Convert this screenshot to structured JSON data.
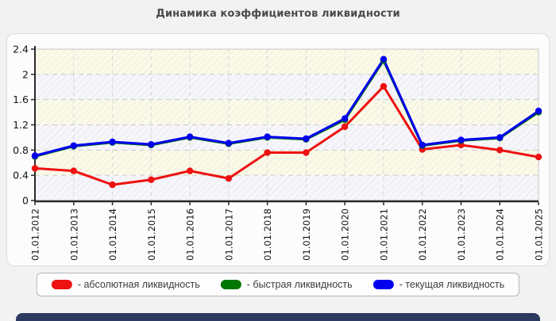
{
  "page": {
    "title": "Динамика коэффициентов ликвидности",
    "background": "#f2f2f2",
    "bottom_bar_color": "#2d3a5f"
  },
  "legend": {
    "items": [
      {
        "label": "- абсолютная ликвидность",
        "color": "#ee1111"
      },
      {
        "label": "- быстрая ликвидность",
        "color": "#007700"
      },
      {
        "label": "- текущая ликвидность",
        "color": "#0000ee"
      }
    ]
  },
  "chart_data": {
    "type": "line",
    "title": "Динамика коэффициентов ликвидности",
    "x_labels": [
      "01.01.2012",
      "01.01.2013",
      "01.01.2014",
      "01.01.2015",
      "01.01.2016",
      "01.01.2017",
      "01.01.2018",
      "01.01.2019",
      "01.01.2020",
      "01.01.2021",
      "01.01.2022",
      "01.01.2023",
      "01.01.2024",
      "01.01.2025"
    ],
    "series": [
      {
        "name": "абсолютная ликвидность",
        "color": "#ee1111",
        "values": [
          0.51,
          0.47,
          0.25,
          0.33,
          0.47,
          0.35,
          0.76,
          0.76,
          1.17,
          1.81,
          0.81,
          0.88,
          0.8,
          0.69
        ]
      },
      {
        "name": "быстрая ликвидность",
        "color": "#007700",
        "values": [
          0.7,
          0.86,
          0.92,
          0.88,
          1.0,
          0.9,
          1.0,
          0.97,
          1.28,
          2.22,
          0.87,
          0.95,
          0.99,
          1.4
        ]
      },
      {
        "name": "текущая ликвидность",
        "color": "#0000ee",
        "values": [
          0.71,
          0.87,
          0.93,
          0.89,
          1.01,
          0.91,
          1.01,
          0.98,
          1.3,
          2.24,
          0.88,
          0.96,
          1.0,
          1.42
        ]
      }
    ],
    "ylim": [
      0,
      2.4
    ],
    "yticks": [
      0,
      0.4,
      0.8,
      1.2,
      1.6,
      2,
      2.4
    ],
    "ytick_labels": [
      "0",
      "0.4",
      "0.8",
      "1.2",
      "1.6",
      "2",
      "2.4"
    ],
    "grid": true,
    "legend_position": "bottom",
    "plot_band_colors": [
      "#f6f6fb",
      "#fbfae9"
    ]
  }
}
